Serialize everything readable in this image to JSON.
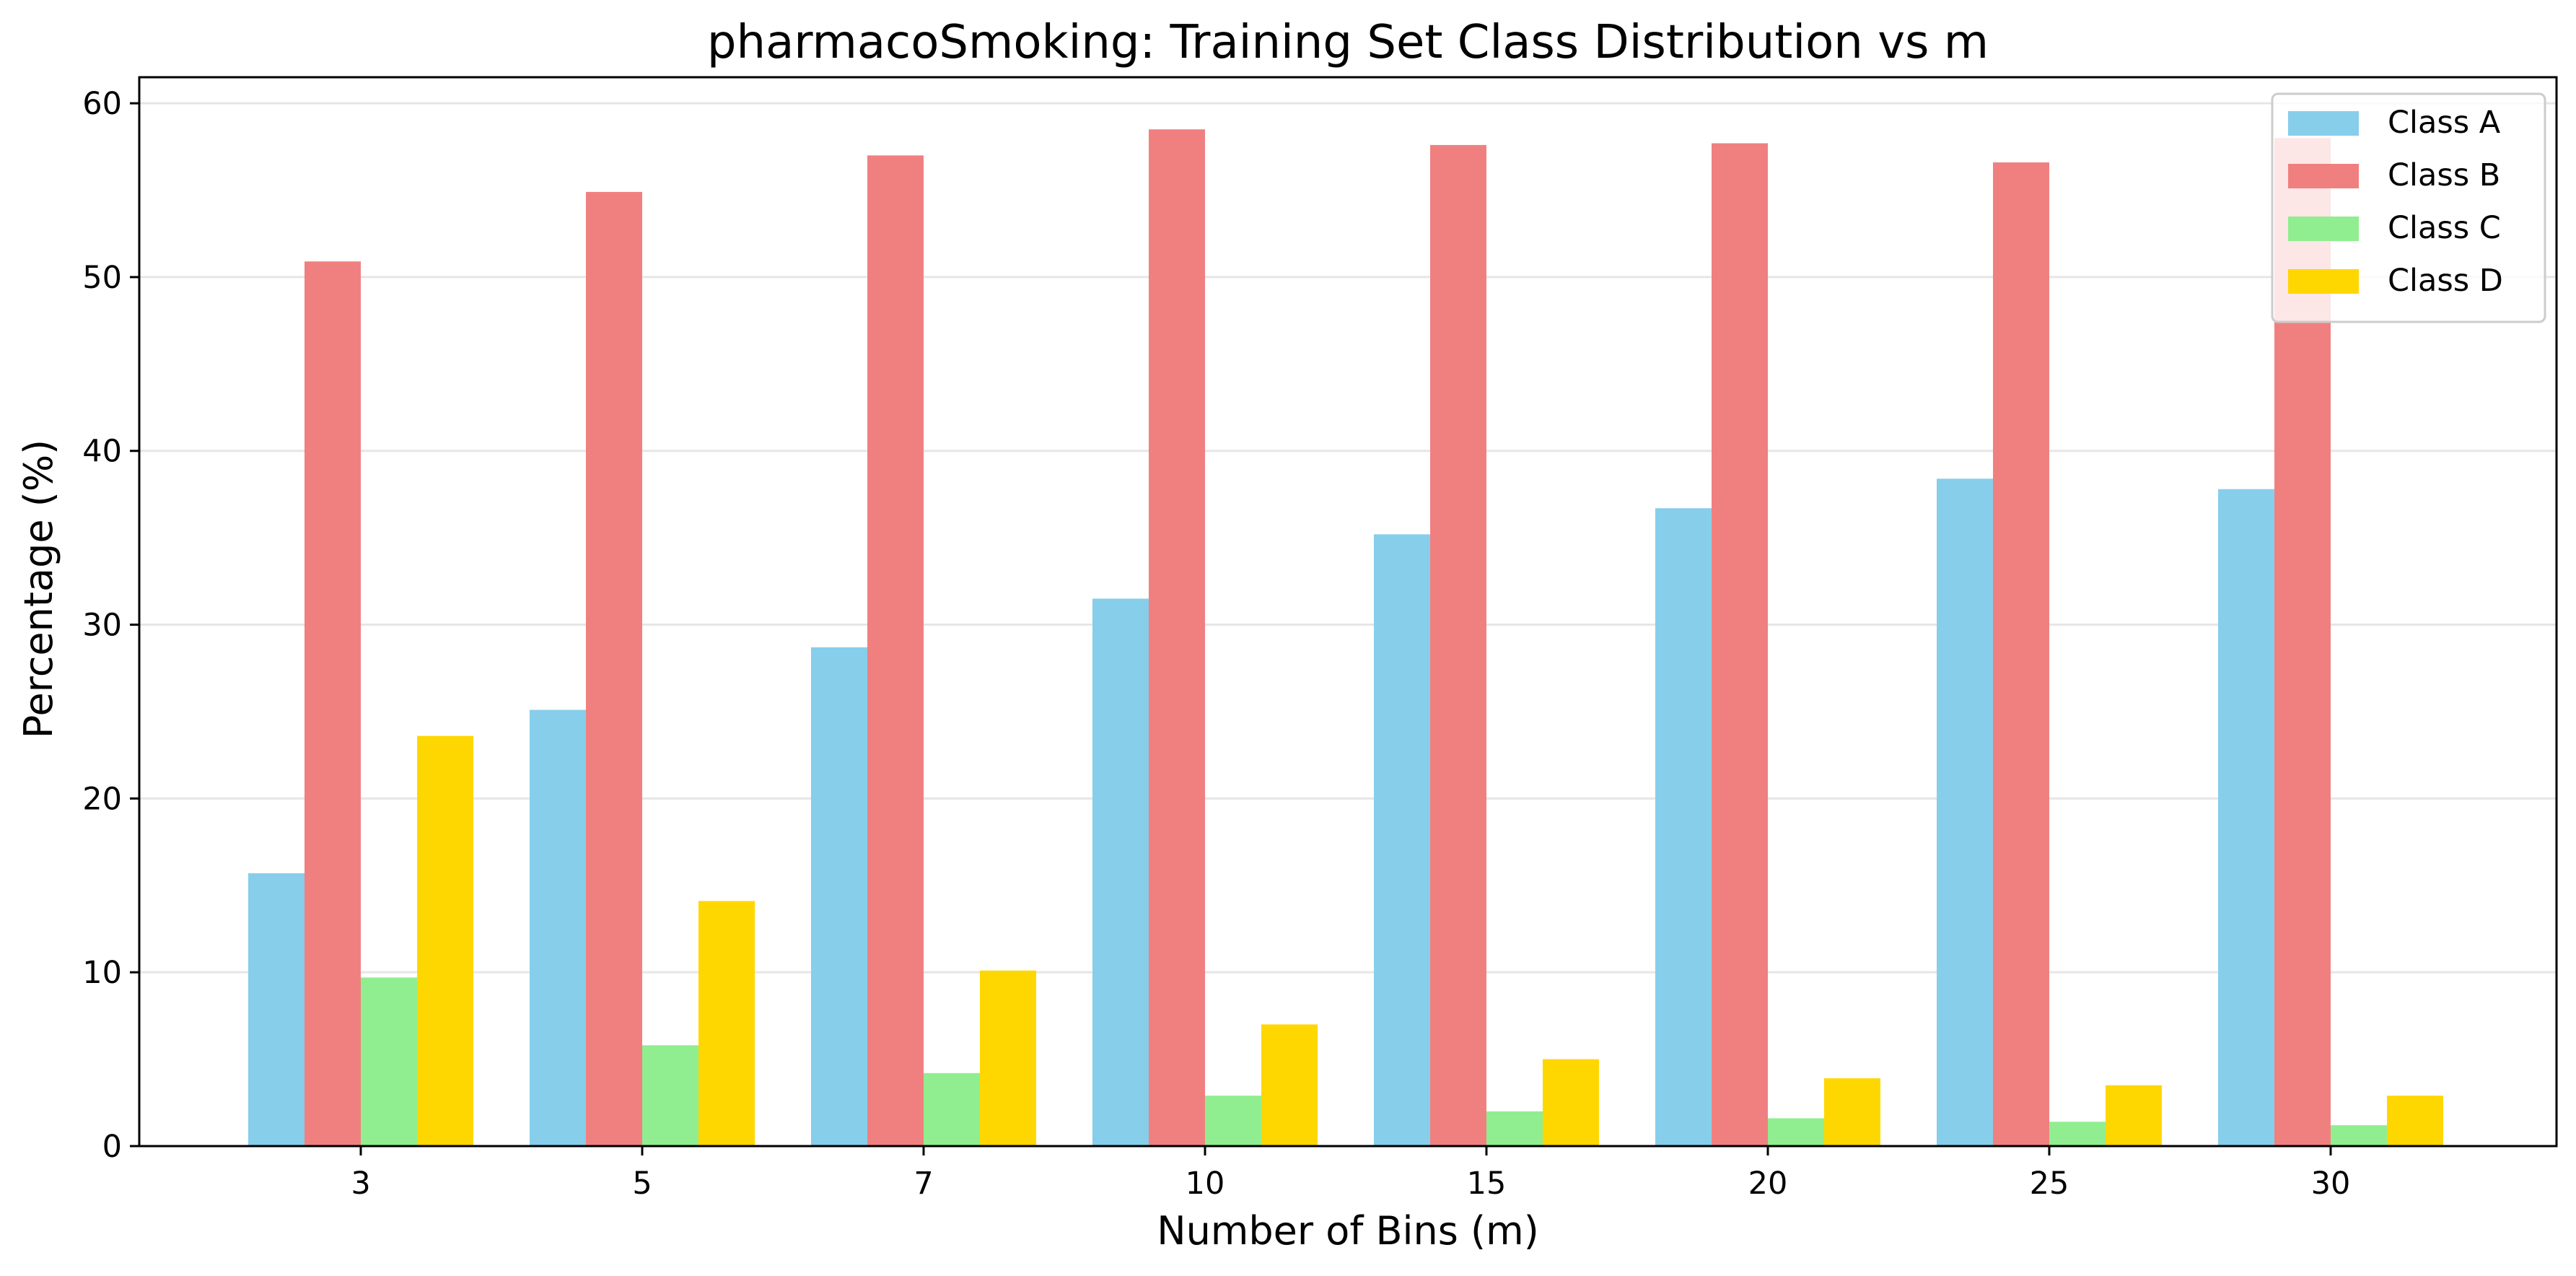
{
  "chart_data": {
    "type": "bar",
    "title": "pharmacoSmoking: Training Set Class Distribution vs m",
    "xlabel": "Number of Bins (m)",
    "ylabel": "Percentage (%)",
    "categories": [
      "3",
      "5",
      "7",
      "10",
      "15",
      "20",
      "25",
      "30"
    ],
    "series": [
      {
        "name": "Class A",
        "color": "#87ceeb",
        "values": [
          15.7,
          25.1,
          28.7,
          31.5,
          35.2,
          36.7,
          38.4,
          37.8
        ]
      },
      {
        "name": "Class B",
        "color": "#f08080",
        "values": [
          50.9,
          54.9,
          57.0,
          58.5,
          57.6,
          57.7,
          56.6,
          58.0
        ]
      },
      {
        "name": "Class C",
        "color": "#90ee90",
        "values": [
          9.7,
          5.8,
          4.2,
          2.9,
          2.0,
          1.6,
          1.4,
          1.2
        ]
      },
      {
        "name": "Class D",
        "color": "#ffd700",
        "values": [
          23.6,
          14.1,
          10.1,
          7.0,
          5.0,
          3.9,
          3.5,
          2.9
        ]
      }
    ],
    "ylim": [
      0,
      61.5
    ],
    "yticks": [
      0,
      10,
      20,
      30,
      40,
      50,
      60
    ],
    "grid": "y",
    "legend_position": "top-right"
  }
}
